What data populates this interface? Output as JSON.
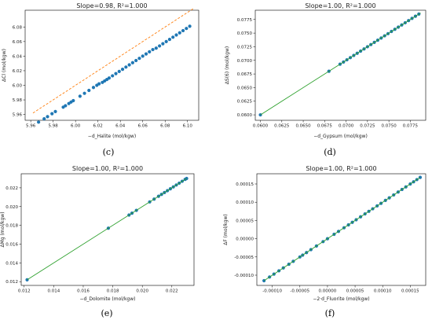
{
  "chart_data": [
    {
      "type": "scatter",
      "title": "Slope=0.98, R²=1.000",
      "xlabel": "−d_Halite (mol/kgw)",
      "ylabel": "ΔCl (mol/kgw)",
      "caption": "(c)",
      "xlim": [
        5.955,
        6.11
      ],
      "ylim": [
        5.952,
        6.103
      ],
      "xticks": [
        5.96,
        5.98,
        6.0,
        6.02,
        6.04,
        6.06,
        6.08,
        6.1
      ],
      "yticks": [
        5.96,
        5.98,
        6.0,
        6.02,
        6.04,
        6.06,
        6.08
      ],
      "tick_decimals": 2,
      "point_color": "#1f77b4",
      "line_color": "#ff7f0e",
      "line_style": "dashed",
      "reference_line": [
        [
          5.962,
          5.962
        ],
        [
          6.105,
          6.105
        ]
      ],
      "x": [
        5.967,
        5.972,
        5.975,
        5.979,
        5.982,
        5.989,
        5.991,
        5.994,
        5.996,
        5.998,
        6.004,
        6.008,
        6.012,
        6.016,
        6.019,
        6.021,
        6.024,
        6.026,
        6.028,
        6.03,
        6.033,
        6.036,
        6.039,
        6.042,
        6.045,
        6.048,
        6.051,
        6.054,
        6.057,
        6.06,
        6.063,
        6.066,
        6.069,
        6.072,
        6.075,
        6.078,
        6.081,
        6.084,
        6.087,
        6.09,
        6.093,
        6.096,
        6.099,
        6.102
      ],
      "y": [
        5.9495,
        5.954,
        5.957,
        5.961,
        5.964,
        5.97,
        5.972,
        5.975,
        5.977,
        5.979,
        5.985,
        5.989,
        5.993,
        5.997,
        6.0,
        6.002,
        6.004,
        6.006,
        6.008,
        6.01,
        6.013,
        6.016,
        6.019,
        6.022,
        6.025,
        6.028,
        6.031,
        6.034,
        6.037,
        6.04,
        6.043,
        6.046,
        6.049,
        6.051,
        6.054,
        6.057,
        6.06,
        6.063,
        6.066,
        6.069,
        6.072,
        6.075,
        6.078,
        6.081
      ]
    },
    {
      "type": "scatter",
      "title": "Slope=1.00, R²=1.000",
      "xlabel": "−d_Gypsum (mol/kgw)",
      "ylabel": "ΔS(6) (mol/kgw)",
      "caption": "(d)",
      "xlim": [
        0.0594,
        0.0793
      ],
      "ylim": [
        0.059,
        0.0792
      ],
      "xticks": [
        0.06,
        0.0625,
        0.065,
        0.0675,
        0.07,
        0.0725,
        0.075,
        0.0775
      ],
      "yticks": [
        0.06,
        0.0625,
        0.065,
        0.0675,
        0.07,
        0.0725,
        0.075,
        0.0775
      ],
      "tick_decimals": 4,
      "point_color": "#1f77b4",
      "line_color": "#2ca02c",
      "line_style": "solid",
      "reference_line": [
        [
          0.06,
          0.06
        ],
        [
          0.0787,
          0.0787
        ]
      ],
      "x": [
        0.06,
        0.068,
        0.0693,
        0.0697,
        0.0701,
        0.0705,
        0.0709,
        0.0713,
        0.0717,
        0.0721,
        0.0725,
        0.0729,
        0.0733,
        0.0737,
        0.0741,
        0.0745,
        0.0749,
        0.0753,
        0.0757,
        0.0761,
        0.0765,
        0.0769,
        0.0773,
        0.0777,
        0.0781,
        0.0785
      ],
      "y": [
        0.06,
        0.068,
        0.0693,
        0.0697,
        0.0701,
        0.0705,
        0.0709,
        0.0713,
        0.0717,
        0.0721,
        0.0725,
        0.0729,
        0.0733,
        0.0737,
        0.0741,
        0.0745,
        0.0749,
        0.0753,
        0.0757,
        0.0761,
        0.0765,
        0.0769,
        0.0773,
        0.0777,
        0.0781,
        0.0785
      ]
    },
    {
      "type": "scatter",
      "title": "Slope=1.00, R²=1.000",
      "xlabel": "−d_Dolomite (mol/kgw)",
      "ylabel": "ΔMg (mol/kgw)",
      "caption": "(e)",
      "xlim": [
        0.0118,
        0.0235
      ],
      "ylim": [
        0.0116,
        0.0235
      ],
      "xticks": [
        0.012,
        0.014,
        0.016,
        0.018,
        0.02,
        0.022
      ],
      "yticks": [
        0.012,
        0.014,
        0.016,
        0.018,
        0.02,
        0.022
      ],
      "tick_decimals": 3,
      "point_color": "#1f77b4",
      "line_color": "#2ca02c",
      "line_style": "solid",
      "reference_line": [
        [
          0.0122,
          0.0122
        ],
        [
          0.023,
          0.023
        ]
      ],
      "x": [
        0.0122,
        0.0177,
        0.0191,
        0.0193,
        0.0196,
        0.0205,
        0.0208,
        0.0211,
        0.0213,
        0.0215,
        0.0217,
        0.0219,
        0.0221,
        0.0223,
        0.0225,
        0.0227,
        0.0229,
        0.023
      ],
      "y": [
        0.0122,
        0.0177,
        0.0191,
        0.0193,
        0.0196,
        0.0205,
        0.0208,
        0.0211,
        0.0213,
        0.0215,
        0.0217,
        0.0219,
        0.0221,
        0.0223,
        0.0225,
        0.0227,
        0.0229,
        0.023
      ]
    },
    {
      "type": "scatter",
      "title": "Slope=1.00, R²=1.000",
      "xlabel": "−2·d_Fluorite (mol/kgw)",
      "ylabel": "ΔF (mol/kgw)",
      "caption": "(f)",
      "xlim": [
        -0.000128,
        0.000178
      ],
      "ylim": [
        -0.000128,
        0.000178
      ],
      "xticks": [
        -0.0001,
        -5e-05,
        0.0,
        5e-05,
        0.0001,
        0.00015
      ],
      "yticks": [
        -0.0001,
        -5e-05,
        0.0,
        5e-05,
        0.0001,
        0.00015
      ],
      "tick_decimals": 5,
      "point_color": "#1f77b4",
      "line_color": "#2ca02c",
      "line_style": "solid",
      "reference_line": [
        [
          -0.000115,
          -0.000115
        ],
        [
          0.000168,
          0.000168
        ]
      ],
      "x": [
        -0.000115,
        -0.000105,
        -9.7e-05,
        -8.8e-05,
        -8e-05,
        -7e-05,
        -6.2e-05,
        -5e-05,
        -4.5e-05,
        -3.8e-05,
        -3e-05,
        -2e-05,
        -8e-06,
        0.0,
        1.2e-05,
        2e-05,
        3e-05,
        3.8e-05,
        4.5e-05,
        5.2e-05,
        6e-05,
        6.8e-05,
        7.5e-05,
        8.2e-05,
        9e-05,
        9.7e-05,
        0.000105,
        0.000112,
        0.00012,
        0.000128,
        0.000135,
        0.000142,
        0.00015,
        0.000156,
        0.000162,
        0.000168
      ],
      "y": [
        -0.000115,
        -0.000105,
        -9.7e-05,
        -8.8e-05,
        -8e-05,
        -7e-05,
        -6.2e-05,
        -5e-05,
        -4.5e-05,
        -3.8e-05,
        -3e-05,
        -2e-05,
        -8e-06,
        0.0,
        1.2e-05,
        2e-05,
        3e-05,
        3.8e-05,
        4.5e-05,
        5.2e-05,
        6e-05,
        6.8e-05,
        7.5e-05,
        8.2e-05,
        9e-05,
        9.7e-05,
        0.000105,
        0.000112,
        0.00012,
        0.000128,
        0.000135,
        0.000142,
        0.00015,
        0.000156,
        0.000162,
        0.000168
      ]
    }
  ]
}
